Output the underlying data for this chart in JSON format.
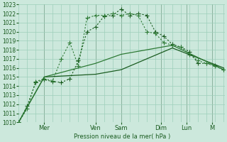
{
  "background_color": "#cce8dc",
  "grid_color": "#9ecfba",
  "line_color_dark": "#1a5c20",
  "line_color_medium": "#2d7a35",
  "ylabel": "Pression niveau de la mer( hPa )",
  "ylim": [
    1010,
    1023
  ],
  "yticks": [
    1010,
    1011,
    1012,
    1013,
    1014,
    1015,
    1016,
    1017,
    1018,
    1019,
    1020,
    1021,
    1022,
    1023
  ],
  "x_day_labels": [
    "Mer",
    "Ven",
    "Sam",
    "Dim",
    "Lun",
    "M"
  ],
  "x_day_positions": [
    18,
    54,
    72,
    100,
    118,
    136
  ],
  "xlim": [
    0,
    145
  ],
  "line1_x": [
    0,
    6,
    12,
    18,
    24,
    30,
    36,
    42,
    48,
    54,
    60,
    66,
    72,
    78,
    84,
    90,
    96,
    102,
    108,
    114,
    120,
    126,
    132,
    138,
    144
  ],
  "line1_y": [
    1010,
    1011.8,
    1014.4,
    1014.7,
    1014.5,
    1014.4,
    1014.8,
    1016.8,
    1020.0,
    1020.5,
    1021.7,
    1021.8,
    1022.5,
    1021.8,
    1022.0,
    1021.8,
    1020.0,
    1019.5,
    1018.6,
    1018.3,
    1017.8,
    1016.5,
    1016.5,
    1016.3,
    1015.8
  ],
  "line2_x": [
    0,
    6,
    12,
    18,
    24,
    30,
    36,
    42,
    48,
    54,
    60,
    66,
    72,
    78,
    84,
    90,
    96,
    102,
    108,
    114,
    120,
    126,
    132,
    138,
    144
  ],
  "line2_y": [
    1010,
    1011.5,
    1014.5,
    1014.8,
    1014.6,
    1017.0,
    1018.8,
    1016.2,
    1021.5,
    1021.8,
    1021.8,
    1022.0,
    1021.8,
    1022.0,
    1021.8,
    1020.0,
    1019.8,
    1018.8,
    1018.5,
    1018.3,
    1017.5,
    1016.8,
    1016.5,
    1016.2,
    1015.8
  ],
  "line3_x": [
    0,
    18,
    54,
    72,
    108,
    144
  ],
  "line3_y": [
    1010,
    1015.0,
    1015.3,
    1015.8,
    1018.2,
    1016.0
  ],
  "line4_x": [
    0,
    18,
    54,
    72,
    108,
    144
  ],
  "line4_y": [
    1010,
    1015.0,
    1016.5,
    1017.5,
    1018.5,
    1015.8
  ],
  "marker_size": 2.5
}
